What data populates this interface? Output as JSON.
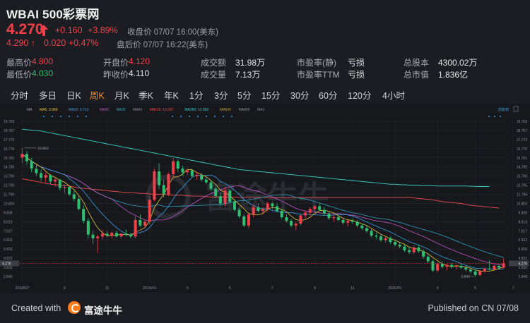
{
  "header": {
    "title": "WBAI 500彩票网",
    "price": "4.270",
    "change": "+0.160",
    "change_pct": "+3.89%",
    "close_label": "收盘价 07/07 16:00(美东)",
    "post_price": "4.290",
    "post_arrow": "↑",
    "post_change": "0.020",
    "post_change_pct": "+0.47%",
    "post_label": "盘后价 07/07 16:22(美东)"
  },
  "stats": [
    {
      "label": "最高价",
      "value": "4.800",
      "color": "#f0414b"
    },
    {
      "label": "开盘价",
      "value": "4.120",
      "color": "#f0414b"
    },
    {
      "label": "成交额",
      "value": "31.98万",
      "color": "#e6e6e6"
    },
    {
      "label": "市盈率(静)",
      "value": "亏损",
      "color": "#e6e6e6"
    },
    {
      "label": "总股本",
      "value": "4300.02万",
      "color": "#e6e6e6"
    },
    {
      "label": "最低价",
      "value": "4.030",
      "color": "#2fbf71"
    },
    {
      "label": "昨收价",
      "value": "4.110",
      "color": "#e6e6e6"
    },
    {
      "label": "成交量",
      "value": "7.13万",
      "color": "#e6e6e6"
    },
    {
      "label": "市盈率TTM",
      "value": "亏损",
      "color": "#e6e6e6"
    },
    {
      "label": "总市值",
      "value": "1.836亿",
      "color": "#e6e6e6"
    }
  ],
  "tabs": [
    "分时",
    "多日",
    "日K",
    "周K",
    "月K",
    "季K",
    "年K",
    "1分",
    "3分",
    "5分",
    "15分",
    "30分",
    "60分",
    "120分",
    "4小时"
  ],
  "active_tab": "周K",
  "chart_data": {
    "type": "candlestick",
    "legend": [
      {
        "label": "MA",
        "color": "#9aa0a8"
      },
      {
        "label": "MA5: 3.969",
        "color": "#e8c53a"
      },
      {
        "label": "MA10: 3.713",
        "color": "#3aa0e8"
      },
      {
        "label": "MA20",
        "color": "#c452c6"
      },
      {
        "label": "MA30",
        "color": "#2fa2c4"
      },
      {
        "label": "MA60",
        "color": "#8a8f98"
      },
      {
        "label": "MA120: 10.297",
        "color": "#f04d4d"
      },
      {
        "label": "MA250: 12.652",
        "color": "#3ad0c8"
      },
      {
        "label": "MA500",
        "color": "#c4a23a"
      },
      {
        "label": "MA800",
        "color": "#8a8f98"
      },
      {
        "label": "MA1",
        "color": "#8a8f98"
      }
    ],
    "adjust_label": "前复权",
    "watermark": "富途牛牛",
    "ylim": [
      2.84,
      19.763
    ],
    "y_ticks": [
      "19.763",
      "18.767",
      "17.772",
      "16.776",
      "15.781",
      "14.785",
      "13.790",
      "12.795",
      "11.799",
      "10.804",
      "9.808",
      "8.813",
      "7.817",
      "6.822",
      "5.826",
      "4.831",
      "3.835",
      "2.840"
    ],
    "current_price_label": "4.270",
    "current_price": 4.27,
    "right_current_label": "4.270",
    "high_annotation": "16.853",
    "low_annotation": "2.840",
    "x_ticks": [
      "2018/07",
      "9",
      "11",
      "2019/01",
      "3",
      "5",
      "7",
      "9",
      "11",
      "2020/01",
      "3",
      "5",
      "7"
    ],
    "x_tick_index": [
      0,
      9,
      18,
      27,
      35,
      44,
      53,
      62,
      70,
      79,
      88,
      96,
      104
    ],
    "candles": [
      [
        15.8,
        16.85,
        15.2,
        16.2
      ],
      [
        16.2,
        16.5,
        15.0,
        15.4
      ],
      [
        15.4,
        15.8,
        14.2,
        14.6
      ],
      [
        14.6,
        15.0,
        13.8,
        14.1
      ],
      [
        14.1,
        14.5,
        13.2,
        13.6
      ],
      [
        13.6,
        14.2,
        13.1,
        13.9
      ],
      [
        13.9,
        14.0,
        12.9,
        13.2
      ],
      [
        13.2,
        13.6,
        12.6,
        13.4
      ],
      [
        13.4,
        13.5,
        12.2,
        12.5
      ],
      [
        12.5,
        12.9,
        11.9,
        12.6
      ],
      [
        12.6,
        12.7,
        11.6,
        11.8
      ],
      [
        11.8,
        12.2,
        11.0,
        11.3
      ],
      [
        11.3,
        11.6,
        10.0,
        10.2
      ],
      [
        10.2,
        10.6,
        8.6,
        8.9
      ],
      [
        8.9,
        9.2,
        7.0,
        7.4
      ],
      [
        7.4,
        7.8,
        6.4,
        7.0
      ],
      [
        7.0,
        7.4,
        5.4,
        7.2
      ],
      [
        7.2,
        7.9,
        6.9,
        7.5
      ],
      [
        7.5,
        7.8,
        7.1,
        7.3
      ],
      [
        7.3,
        7.7,
        7.0,
        7.6
      ],
      [
        7.6,
        7.8,
        7.1,
        7.2
      ],
      [
        7.2,
        7.6,
        7.0,
        7.5
      ],
      [
        7.5,
        8.0,
        7.2,
        7.4
      ],
      [
        7.4,
        7.6,
        7.0,
        7.2
      ],
      [
        7.2,
        9.4,
        7.0,
        9.0
      ],
      [
        9.0,
        9.6,
        8.2,
        8.4
      ],
      [
        8.4,
        9.0,
        8.1,
        8.8
      ],
      [
        8.8,
        11.6,
        8.5,
        11.2
      ],
      [
        11.2,
        14.6,
        11.0,
        14.3
      ],
      [
        14.3,
        15.2,
        12.4,
        12.8
      ],
      [
        12.8,
        13.4,
        11.5,
        11.8
      ],
      [
        11.8,
        14.2,
        11.6,
        14.0
      ],
      [
        14.0,
        15.8,
        13.6,
        15.4
      ],
      [
        15.4,
        15.6,
        14.2,
        14.6
      ],
      [
        14.6,
        14.9,
        13.8,
        14.2
      ],
      [
        14.2,
        14.6,
        13.9,
        14.4
      ],
      [
        14.4,
        14.6,
        13.6,
        13.8
      ],
      [
        13.8,
        14.2,
        13.4,
        13.9
      ],
      [
        13.9,
        14.1,
        13.2,
        13.4
      ],
      [
        13.4,
        13.8,
        12.9,
        13.1
      ],
      [
        13.1,
        13.3,
        12.2,
        12.4
      ],
      [
        12.4,
        12.6,
        11.4,
        11.6
      ],
      [
        11.6,
        12.0,
        10.6,
        10.8
      ],
      [
        10.8,
        12.6,
        10.5,
        12.2
      ],
      [
        12.2,
        12.4,
        10.8,
        11.0
      ],
      [
        11.0,
        11.3,
        9.9,
        10.1
      ],
      [
        10.1,
        10.3,
        9.2,
        9.4
      ],
      [
        9.4,
        9.6,
        8.2,
        8.4
      ],
      [
        8.4,
        9.8,
        8.1,
        9.6
      ],
      [
        9.6,
        10.6,
        9.3,
        10.4
      ],
      [
        10.4,
        10.8,
        9.8,
        10.0
      ],
      [
        10.0,
        10.4,
        9.6,
        10.2
      ],
      [
        10.2,
        11.0,
        9.9,
        10.8
      ],
      [
        10.8,
        11.0,
        10.2,
        10.5
      ],
      [
        10.5,
        10.8,
        9.8,
        10.0
      ],
      [
        10.0,
        10.2,
        9.1,
        9.3
      ],
      [
        9.3,
        9.6,
        8.7,
        8.9
      ],
      [
        8.9,
        9.1,
        8.2,
        8.4
      ],
      [
        8.4,
        8.8,
        7.9,
        8.6
      ],
      [
        8.6,
        9.7,
        8.4,
        9.5
      ],
      [
        9.5,
        10.0,
        9.2,
        9.8
      ],
      [
        9.8,
        10.4,
        9.5,
        10.2
      ],
      [
        10.2,
        10.6,
        9.8,
        10.5
      ],
      [
        10.5,
        10.8,
        10.0,
        10.1
      ],
      [
        10.1,
        10.4,
        9.5,
        9.7
      ],
      [
        9.7,
        9.9,
        9.0,
        9.2
      ],
      [
        9.2,
        9.5,
        8.8,
        9.3
      ],
      [
        9.3,
        9.5,
        8.9,
        9.0
      ],
      [
        9.0,
        9.3,
        8.5,
        8.7
      ],
      [
        8.7,
        9.0,
        8.3,
        8.9
      ],
      [
        8.9,
        9.2,
        8.6,
        8.8
      ],
      [
        8.8,
        9.0,
        8.2,
        8.4
      ],
      [
        8.4,
        8.6,
        7.9,
        8.1
      ],
      [
        8.1,
        8.4,
        7.6,
        7.8
      ],
      [
        7.8,
        8.0,
        7.1,
        7.3
      ],
      [
        7.3,
        7.6,
        6.9,
        7.2
      ],
      [
        7.2,
        7.4,
        6.6,
        6.8
      ],
      [
        6.8,
        7.2,
        6.5,
        7.0
      ],
      [
        7.0,
        7.2,
        6.4,
        6.6
      ],
      [
        6.6,
        6.9,
        6.1,
        6.3
      ],
      [
        6.3,
        6.6,
        5.9,
        6.1
      ],
      [
        6.1,
        6.3,
        5.5,
        5.7
      ],
      [
        5.7,
        6.0,
        5.3,
        5.5
      ],
      [
        5.5,
        6.2,
        5.3,
        6.0
      ],
      [
        6.0,
        6.3,
        5.4,
        5.6
      ],
      [
        5.6,
        5.8,
        4.8,
        5.0
      ],
      [
        5.0,
        5.3,
        4.3,
        4.5
      ],
      [
        4.5,
        4.7,
        3.3,
        3.5
      ],
      [
        3.5,
        4.4,
        3.3,
        4.2
      ],
      [
        4.2,
        4.5,
        3.7,
        3.9
      ],
      [
        3.9,
        4.2,
        3.5,
        4.1
      ],
      [
        4.1,
        4.3,
        3.7,
        3.9
      ],
      [
        3.9,
        4.1,
        3.6,
        4.0
      ],
      [
        4.0,
        4.2,
        3.7,
        3.8
      ],
      [
        3.8,
        4.0,
        3.4,
        3.6
      ],
      [
        3.6,
        3.8,
        3.2,
        3.4
      ],
      [
        3.4,
        3.6,
        2.84,
        3.0
      ],
      [
        3.0,
        3.5,
        2.9,
        3.4
      ],
      [
        3.4,
        3.8,
        3.2,
        3.7
      ],
      [
        3.7,
        4.6,
        3.5,
        3.6
      ],
      [
        3.6,
        4.1,
        3.4,
        4.0
      ],
      [
        4.0,
        4.2,
        3.6,
        3.8
      ],
      [
        3.8,
        4.8,
        3.7,
        4.27
      ]
    ],
    "ma120": [
      13.5,
      13.4,
      13.3,
      13.2,
      13.1,
      13.0,
      12.9,
      12.85,
      12.8,
      12.75,
      12.7,
      12.6,
      12.5,
      12.45,
      12.4,
      12.35,
      12.3,
      12.25,
      12.2,
      12.15,
      12.1,
      12.05,
      12.0,
      12.0,
      11.95,
      11.9,
      11.9,
      11.85,
      11.8,
      11.8,
      11.8,
      11.75,
      11.7,
      11.7,
      11.7,
      11.65,
      11.6,
      11.6,
      11.6,
      11.55,
      11.5,
      11.5,
      11.5,
      11.5,
      11.5,
      11.5,
      11.45,
      11.45,
      11.45,
      11.45,
      11.45,
      11.45,
      11.45,
      11.45,
      11.45,
      11.45,
      11.45,
      11.45,
      11.45,
      11.45,
      11.45,
      11.45,
      11.45,
      11.45,
      11.45,
      11.45,
      11.45,
      11.45,
      11.45,
      11.45,
      11.45,
      11.45,
      11.45,
      11.45,
      11.45,
      11.45,
      11.45,
      11.45,
      11.45,
      11.45,
      11.45,
      11.45,
      11.45,
      11.4,
      11.35,
      11.3,
      11.25,
      11.2,
      11.1,
      11.0,
      10.95,
      10.9,
      10.85,
      10.8,
      10.7,
      10.6,
      10.55,
      10.5,
      10.45,
      10.4,
      10.35,
      10.3
    ],
    "ma250": [
      18.9,
      18.85,
      18.8,
      18.75,
      18.7,
      18.6,
      18.5,
      18.4,
      18.3,
      18.2,
      18.1,
      18.0,
      17.9,
      17.8,
      17.7,
      17.6,
      17.5,
      17.4,
      17.3,
      17.2,
      17.1,
      17.0,
      16.9,
      16.8,
      16.7,
      16.6,
      16.5,
      16.4,
      16.3,
      16.2,
      16.1,
      16.0,
      15.9,
      15.8,
      15.7,
      15.6,
      15.5,
      15.4,
      15.3,
      15.2,
      15.1,
      15.0,
      14.9,
      14.8,
      14.7,
      14.6,
      14.5,
      14.45,
      14.4,
      14.35,
      14.3,
      14.25,
      14.2,
      14.15,
      14.1,
      14.05,
      14.0,
      13.95,
      13.9,
      13.85,
      13.8,
      13.75,
      13.7,
      13.65,
      13.6,
      13.55,
      13.5,
      13.45,
      13.4,
      13.35,
      13.3,
      13.25,
      13.2,
      13.15,
      13.1,
      13.05,
      13.0,
      12.95,
      12.9,
      12.9,
      12.85,
      12.85,
      12.8,
      12.8,
      12.8,
      12.75,
      12.75,
      12.75,
      12.7,
      12.7,
      12.7,
      12.7,
      12.7,
      12.7,
      12.7,
      12.68,
      12.66,
      12.65,
      12.65,
      12.652
    ]
  },
  "footer": {
    "created_with": "Created with",
    "brand": "富途牛牛",
    "published": "Published on CN 07/08"
  }
}
